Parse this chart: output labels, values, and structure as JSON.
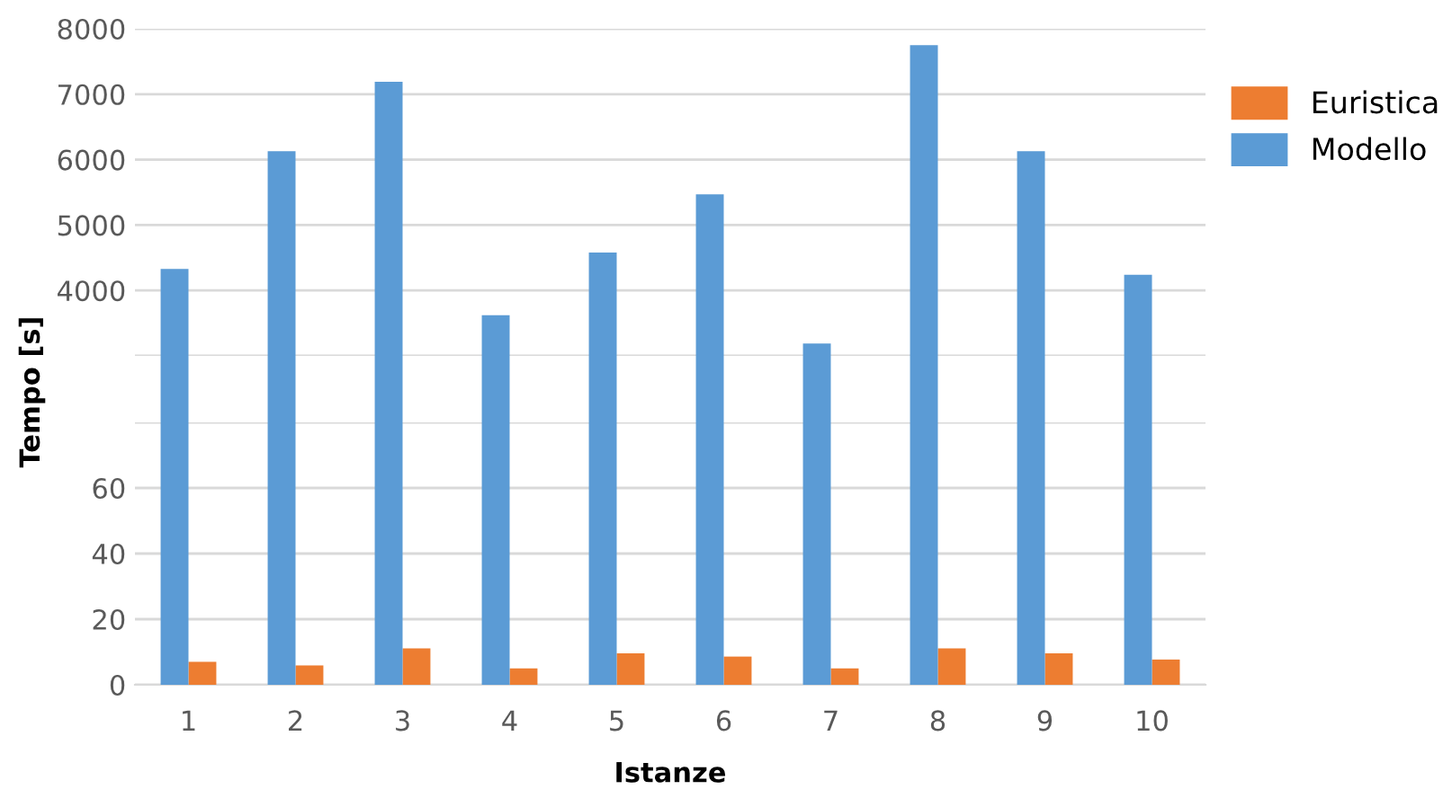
{
  "chart_data": [
    {
      "type": "bar",
      "ylabel": "Tempo [s]",
      "categories": [
        "1",
        "2",
        "3",
        "4",
        "5",
        "6",
        "7",
        "8",
        "9",
        "10"
      ],
      "tick_labels": "y",
      "ylim": [
        3000,
        8000
      ],
      "yticks": [
        {
          "value": 3000,
          "label": null
        },
        4000,
        5000,
        6000,
        7000,
        8000
      ],
      "grid": "y",
      "legend": "right",
      "series": [
        {
          "name": "Euristica",
          "color": "#ed7d31",
          "values": [
            null,
            null,
            null,
            null,
            null,
            null,
            null,
            null,
            null,
            null
          ]
        },
        {
          "name": "Modello",
          "color": "#5b9bd5",
          "values": [
            4330,
            6130,
            7190,
            3620,
            4580,
            5470,
            3190,
            7750,
            6130,
            4240
          ]
        }
      ]
    },
    {
      "type": "bar",
      "xlabel": "Istanze",
      "categories": [
        "1",
        "2",
        "3",
        "4",
        "5",
        "6",
        "7",
        "8",
        "9",
        "10"
      ],
      "ylim": [
        0,
        80
      ],
      "yticks": [
        0,
        20,
        40,
        60,
        {
          "value": 80,
          "label": null
        }
      ],
      "grid": "y",
      "series": [
        {
          "color": "#ed7d31",
          "values": [
            7.0,
            5.9,
            11.1,
            5.0,
            9.6,
            8.6,
            5.0,
            11.1,
            9.6,
            7.7
          ]
        }
      ]
    }
  ]
}
